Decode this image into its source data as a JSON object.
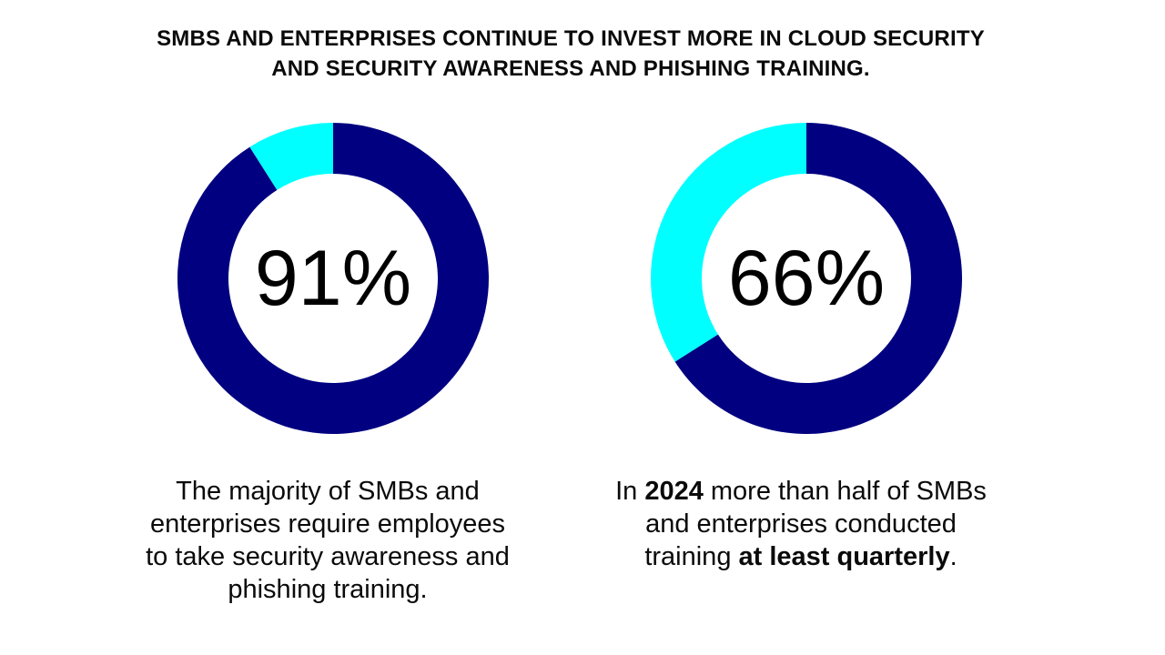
{
  "headline": {
    "line1": "SMBS AND ENTERPRISES CONTINUE TO INVEST MORE IN CLOUD SECURITY",
    "line2": "AND SECURITY AWARENESS AND PHISHING TRAINING."
  },
  "colors": {
    "primary": "#000080",
    "remainder": "#00FFFF",
    "text": "#0a0a0a",
    "background": "#ffffff"
  },
  "chart_data": [
    {
      "type": "pie",
      "variant": "donut",
      "center_label": "91%",
      "values": [
        91,
        9
      ],
      "slice_colors": [
        "#000080",
        "#00FFFF"
      ],
      "caption": "The majority of SMBs and enterprises require employees to take security awareness and phishing training."
    },
    {
      "type": "pie",
      "variant": "donut",
      "center_label": "66%",
      "values": [
        66,
        34
      ],
      "slice_colors": [
        "#000080",
        "#00FFFF"
      ],
      "caption_parts": {
        "p1": "In ",
        "b1": "2024",
        "p2": " more than half of SMBs and enterprises conducted training ",
        "b2": "at least quarterly",
        "p3": "."
      }
    }
  ]
}
